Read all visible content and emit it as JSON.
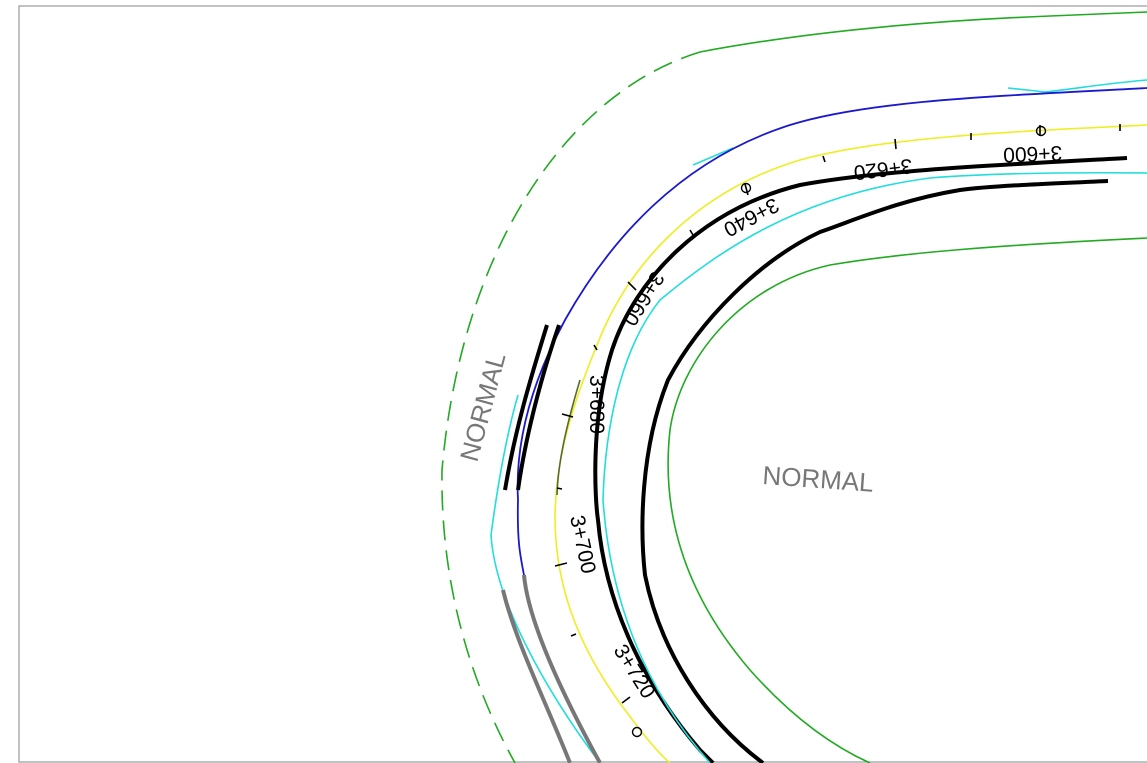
{
  "zone_labels": {
    "outer": "NORMAL",
    "inner": "NORMAL"
  },
  "stations": [
    {
      "label": "3+600"
    },
    {
      "label": "3+620"
    },
    {
      "label": "3+640"
    },
    {
      "label": "3+660"
    },
    {
      "label": "3+680"
    },
    {
      "label": "3+700"
    },
    {
      "label": "3+720"
    }
  ],
  "colors": {
    "outer_limit_green": "#22aa22",
    "inner_limit_green": "#22aa22",
    "edge_blue": "#1a1acc",
    "offset_cyan": "#22dddd",
    "centerline_yellow": "#eeee22",
    "edge_black": "#000000",
    "shoulder_gray": "#777777",
    "zone_text": "#777777",
    "border": "#999999"
  }
}
